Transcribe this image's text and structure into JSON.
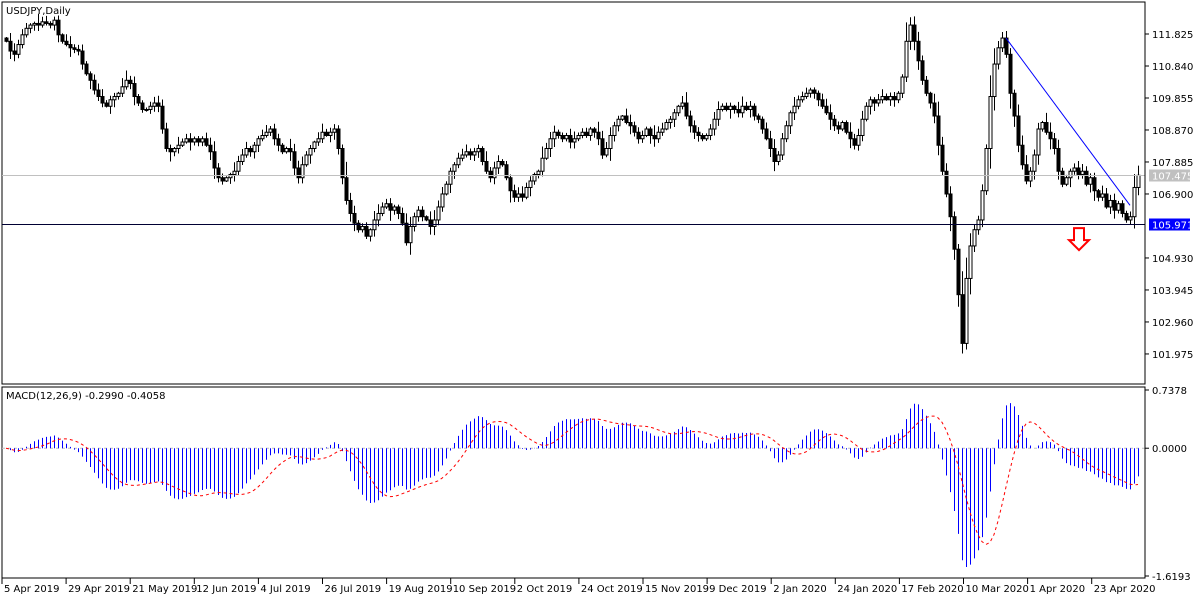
{
  "chart_data": {
    "type": "candlestick",
    "title": "USDJPY,Daily",
    "symbol": "USDJPY",
    "timeframe": "Daily",
    "price_axis": {
      "ylim": [
        101.05,
        112.81
      ],
      "ticks": [
        "111.825",
        "110.840",
        "109.855",
        "108.870",
        "107.885",
        "106.900",
        "104.930",
        "103.945",
        "102.960",
        "101.975"
      ]
    },
    "x_tick_labels": [
      "5 Apr 2019",
      "29 Apr 2019",
      "21 May 2019",
      "12 Jun 2019",
      "4 Jul 2019",
      "26 Jul 2019",
      "19 Aug 2019",
      "10 Sep 2019",
      "2 Oct 2019",
      "24 Oct 2019",
      "15 Nov 2019",
      "9 Dec 2019",
      "2 Jan 2020",
      "24 Jan 2020",
      "17 Feb 2020",
      "10 Mar 2020",
      "1 Apr 2020",
      "23 Apr 2020"
    ],
    "close": [
      111.6,
      111.3,
      111.2,
      111.5,
      111.8,
      112.0,
      112.1,
      112.15,
      112.1,
      112.2,
      112.15,
      112.1,
      112.25,
      111.8,
      111.6,
      111.5,
      111.4,
      111.35,
      111.3,
      110.9,
      110.6,
      110.4,
      110.1,
      109.9,
      109.7,
      109.6,
      109.8,
      109.9,
      110.0,
      110.2,
      110.4,
      110.3,
      109.9,
      109.7,
      109.5,
      109.5,
      109.6,
      109.7,
      109.6,
      108.9,
      108.3,
      108.2,
      108.3,
      108.4,
      108.5,
      108.6,
      108.5,
      108.6,
      108.5,
      108.6,
      108.4,
      108.2,
      107.7,
      107.4,
      107.3,
      107.4,
      107.5,
      107.6,
      107.9,
      108.1,
      108.3,
      108.2,
      108.4,
      108.6,
      108.7,
      108.8,
      108.9,
      108.6,
      108.4,
      108.2,
      108.3,
      108.2,
      107.7,
      107.4,
      107.8,
      108.1,
      108.3,
      108.5,
      108.6,
      108.8,
      108.7,
      108.8,
      108.9,
      108.3,
      107.4,
      106.7,
      106.3,
      106.0,
      105.8,
      105.9,
      105.6,
      105.8,
      106.1,
      106.3,
      106.5,
      106.6,
      106.4,
      106.5,
      106.3,
      106.0,
      105.4,
      105.9,
      106.2,
      106.4,
      106.2,
      106.1,
      105.9,
      106.1,
      106.5,
      106.9,
      107.2,
      107.6,
      107.8,
      108.0,
      108.1,
      108.2,
      108.1,
      108.2,
      108.3,
      107.9,
      107.6,
      107.4,
      107.7,
      107.9,
      107.8,
      107.4,
      107.0,
      106.8,
      106.9,
      106.8,
      107.1,
      107.3,
      107.5,
      107.6,
      108.0,
      108.3,
      108.6,
      108.8,
      108.7,
      108.6,
      108.7,
      108.5,
      108.6,
      108.7,
      108.8,
      108.7,
      108.9,
      108.8,
      108.6,
      108.1,
      108.3,
      108.7,
      109.0,
      109.2,
      109.3,
      109.1,
      109.0,
      108.8,
      108.6,
      108.7,
      108.9,
      108.7,
      108.6,
      108.8,
      108.9,
      109.1,
      109.2,
      109.4,
      109.6,
      109.7,
      109.3,
      109.0,
      108.8,
      108.7,
      108.6,
      108.7,
      108.9,
      109.2,
      109.5,
      109.6,
      109.5,
      109.6,
      109.5,
      109.4,
      109.6,
      109.5,
      109.6,
      109.3,
      109.2,
      108.9,
      108.6,
      108.3,
      107.9,
      108.1,
      108.6,
      109.0,
      109.4,
      109.6,
      109.8,
      109.9,
      110.0,
      110.1,
      110.0,
      109.8,
      109.6,
      109.4,
      109.2,
      109.0,
      108.9,
      109.1,
      108.8,
      108.6,
      108.4,
      108.7,
      109.2,
      109.6,
      109.8,
      109.7,
      109.8,
      109.9,
      109.8,
      109.9,
      109.8,
      110.0,
      110.5,
      111.6,
      112.1,
      111.6,
      111.0,
      110.4,
      110.0,
      109.7,
      109.3,
      108.4,
      107.6,
      106.9,
      106.2,
      105.2,
      103.8,
      102.3,
      104.3,
      105.3,
      105.8,
      106.1,
      107.0,
      108.3,
      109.9,
      110.9,
      111.4,
      111.7,
      111.2,
      110.0,
      109.3,
      108.4,
      107.8,
      107.3,
      107.6,
      108.1,
      108.9,
      109.1,
      108.8,
      108.6,
      108.3,
      107.6,
      107.2,
      107.4,
      107.6,
      107.7,
      107.5,
      107.6,
      107.2,
      107.4,
      107.0,
      106.8,
      106.9,
      106.5,
      106.7,
      106.4,
      106.6,
      106.3,
      106.1,
      106.2,
      107.1,
      107.475
    ],
    "horizontal_lines": [
      {
        "price": 107.475,
        "label": "107.475",
        "line_color": "#c0c0c0",
        "label_bg": "#c0c0c0",
        "label_color": "#ffffff"
      },
      {
        "price": 105.971,
        "label": "105.971",
        "line_color": "#000033",
        "label_bg": "#0000ff",
        "label_color": "#ffffff"
      }
    ],
    "trendline": {
      "from_bar": 250,
      "from_price": 111.7,
      "to_bar": 281,
      "to_price": 106.55,
      "color": "#0000ff"
    },
    "arrow": {
      "direction": "down",
      "bar": 268,
      "price": 105.85,
      "color": "#ff0000"
    },
    "macd": {
      "label": "MACD(12,26,9) -0.2990 -0.4058",
      "params": [
        12,
        26,
        9
      ],
      "ylim": [
        -1.6193,
        0.7378
      ],
      "ticks": [
        "0.7378",
        "0.0000",
        "-1.6193"
      ],
      "histogram_color": "#0000ff",
      "signal_color": "#ff0000"
    },
    "colors": {
      "background": "#ffffff",
      "candle": "#000000",
      "grid_zero": "#c0c0c0"
    }
  }
}
